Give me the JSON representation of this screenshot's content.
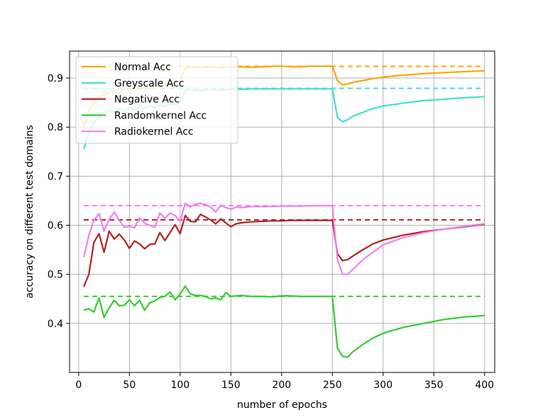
{
  "chart_data": {
    "type": "line",
    "xlabel": "number of epochs",
    "ylabel": "accuracy on different test domains",
    "xlim": [
      -9,
      410
    ],
    "ylim": [
      0.3,
      0.955
    ],
    "xticks": [
      0,
      50,
      100,
      150,
      200,
      250,
      300,
      350,
      400
    ],
    "yticks": [
      0.4,
      0.5,
      0.6,
      0.7,
      0.8,
      0.9
    ],
    "ytick_labels": [
      "0.4",
      "0.5",
      "0.6",
      "0.7",
      "0.8",
      "0.9"
    ],
    "grid": true,
    "legend_position": "upper-left",
    "series": [
      {
        "name": "Normal Acc",
        "color": "#ffa500",
        "baseline": 0.924,
        "x": [
          5,
          10,
          15,
          20,
          25,
          30,
          35,
          40,
          45,
          50,
          55,
          60,
          65,
          70,
          75,
          80,
          85,
          90,
          95,
          100,
          105,
          110,
          120,
          130,
          140,
          150,
          160,
          170,
          180,
          190,
          200,
          210,
          220,
          230,
          240,
          250,
          255,
          260,
          265,
          270,
          280,
          290,
          300,
          320,
          340,
          360,
          380,
          400
        ],
        "values": [
          0.8,
          0.835,
          0.85,
          0.86,
          0.865,
          0.87,
          0.875,
          0.87,
          0.878,
          0.875,
          0.88,
          0.877,
          0.883,
          0.878,
          0.885,
          0.88,
          0.888,
          0.885,
          0.89,
          0.895,
          0.92,
          0.922,
          0.921,
          0.923,
          0.921,
          0.922,
          0.923,
          0.922,
          0.923,
          0.924,
          0.924,
          0.923,
          0.923,
          0.924,
          0.924,
          0.924,
          0.895,
          0.886,
          0.888,
          0.891,
          0.895,
          0.899,
          0.902,
          0.906,
          0.909,
          0.911,
          0.913,
          0.915
        ]
      },
      {
        "name": "Greyscale Acc",
        "color": "#40e0d0",
        "baseline": 0.879,
        "x": [
          5,
          10,
          15,
          20,
          25,
          30,
          35,
          40,
          45,
          50,
          55,
          60,
          65,
          70,
          75,
          80,
          85,
          90,
          95,
          100,
          105,
          110,
          120,
          130,
          140,
          150,
          160,
          170,
          180,
          190,
          200,
          210,
          220,
          230,
          240,
          250,
          255,
          260,
          265,
          270,
          280,
          290,
          300,
          320,
          340,
          360,
          380,
          400
        ],
        "values": [
          0.755,
          0.79,
          0.81,
          0.82,
          0.83,
          0.835,
          0.83,
          0.838,
          0.832,
          0.84,
          0.835,
          0.842,
          0.838,
          0.845,
          0.84,
          0.845,
          0.842,
          0.848,
          0.845,
          0.85,
          0.875,
          0.876,
          0.874,
          0.877,
          0.875,
          0.878,
          0.877,
          0.878,
          0.878,
          0.878,
          0.878,
          0.878,
          0.878,
          0.878,
          0.878,
          0.878,
          0.82,
          0.811,
          0.815,
          0.822,
          0.83,
          0.838,
          0.843,
          0.849,
          0.854,
          0.857,
          0.86,
          0.862
        ]
      },
      {
        "name": "Negative Acc",
        "color": "#b22222",
        "baseline": 0.611,
        "x": [
          5,
          10,
          15,
          20,
          25,
          30,
          35,
          40,
          45,
          50,
          55,
          60,
          65,
          70,
          75,
          80,
          85,
          90,
          95,
          100,
          105,
          110,
          115,
          120,
          125,
          130,
          135,
          140,
          145,
          150,
          155,
          160,
          170,
          180,
          190,
          200,
          210,
          220,
          230,
          240,
          250,
          255,
          260,
          265,
          270,
          280,
          290,
          300,
          320,
          340,
          360,
          380,
          400
        ],
        "values": [
          0.475,
          0.5,
          0.565,
          0.583,
          0.545,
          0.588,
          0.572,
          0.582,
          0.57,
          0.553,
          0.568,
          0.562,
          0.552,
          0.561,
          0.562,
          0.585,
          0.569,
          0.585,
          0.601,
          0.583,
          0.62,
          0.608,
          0.607,
          0.622,
          0.617,
          0.611,
          0.603,
          0.613,
          0.605,
          0.597,
          0.603,
          0.605,
          0.607,
          0.608,
          0.609,
          0.609,
          0.61,
          0.61,
          0.61,
          0.61,
          0.61,
          0.542,
          0.528,
          0.53,
          0.537,
          0.55,
          0.562,
          0.57,
          0.58,
          0.587,
          0.592,
          0.597,
          0.602
        ]
      },
      {
        "name": "Randomkernel Acc",
        "color": "#32cd32",
        "baseline": 0.455,
        "x": [
          5,
          10,
          15,
          20,
          25,
          30,
          35,
          40,
          45,
          50,
          55,
          60,
          65,
          70,
          75,
          80,
          85,
          90,
          95,
          100,
          105,
          110,
          115,
          120,
          125,
          130,
          135,
          140,
          145,
          150,
          160,
          170,
          180,
          190,
          200,
          210,
          220,
          230,
          240,
          250,
          255,
          260,
          265,
          270,
          280,
          290,
          300,
          320,
          340,
          360,
          380,
          400
        ],
        "values": [
          0.427,
          0.43,
          0.423,
          0.452,
          0.412,
          0.432,
          0.447,
          0.436,
          0.437,
          0.448,
          0.436,
          0.447,
          0.427,
          0.442,
          0.446,
          0.453,
          0.455,
          0.464,
          0.448,
          0.46,
          0.476,
          0.46,
          0.457,
          0.457,
          0.455,
          0.45,
          0.452,
          0.448,
          0.463,
          0.455,
          0.457,
          0.455,
          0.455,
          0.454,
          0.456,
          0.456,
          0.455,
          0.455,
          0.455,
          0.455,
          0.35,
          0.333,
          0.331,
          0.342,
          0.357,
          0.37,
          0.38,
          0.392,
          0.4,
          0.408,
          0.413,
          0.416
        ]
      },
      {
        "name": "Radiokernel Acc",
        "color": "#ee82ee",
        "baseline": 0.64,
        "x": [
          5,
          10,
          15,
          20,
          25,
          30,
          35,
          40,
          45,
          50,
          55,
          60,
          65,
          70,
          75,
          80,
          85,
          90,
          95,
          100,
          105,
          110,
          115,
          120,
          125,
          130,
          135,
          140,
          145,
          150,
          155,
          160,
          170,
          180,
          190,
          200,
          210,
          220,
          230,
          240,
          250,
          255,
          260,
          265,
          270,
          280,
          290,
          300,
          320,
          340,
          360,
          380,
          400
        ],
        "values": [
          0.535,
          0.58,
          0.61,
          0.624,
          0.588,
          0.612,
          0.627,
          0.61,
          0.596,
          0.598,
          0.595,
          0.615,
          0.604,
          0.6,
          0.596,
          0.625,
          0.614,
          0.625,
          0.62,
          0.608,
          0.645,
          0.637,
          0.643,
          0.645,
          0.642,
          0.637,
          0.627,
          0.641,
          0.636,
          0.633,
          0.637,
          0.636,
          0.638,
          0.638,
          0.638,
          0.639,
          0.639,
          0.639,
          0.64,
          0.64,
          0.64,
          0.53,
          0.5,
          0.5,
          0.51,
          0.53,
          0.545,
          0.56,
          0.575,
          0.585,
          0.592,
          0.598,
          0.603
        ]
      }
    ]
  }
}
